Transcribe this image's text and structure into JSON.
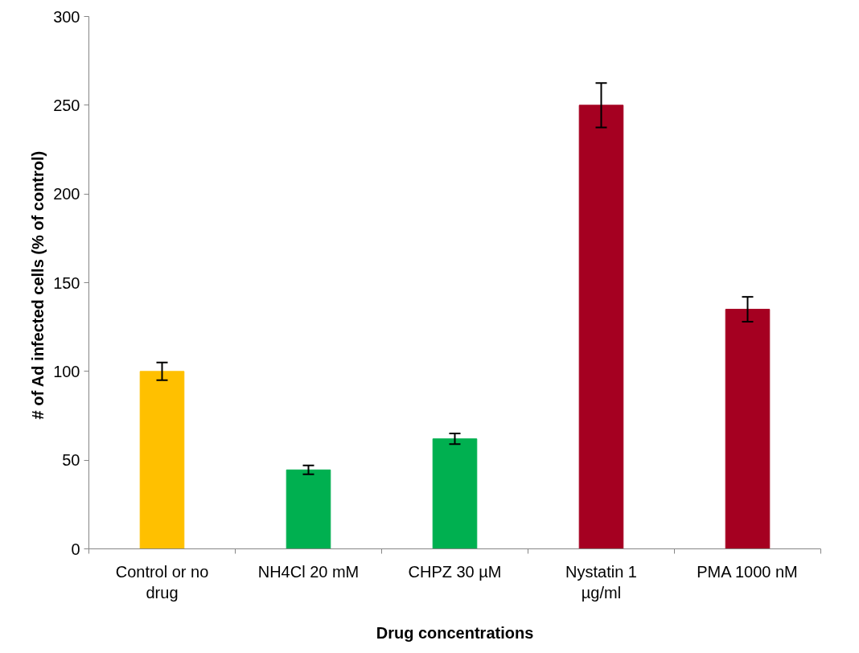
{
  "chart_data": {
    "type": "bar",
    "xlabel": "Drug concentrations",
    "ylabel": "# of Ad infected cells  (% of control)",
    "categories": [
      "Control or no drug",
      "NH4Cl 20 mM",
      "CHPZ 30 µM",
      "Nystatin 1 µg/ml",
      "PMA 1000 nM"
    ],
    "values": [
      100,
      44.5,
      62,
      250,
      135
    ],
    "colors": [
      "#ffc000",
      "#00b050",
      "#00b050",
      "#a50021",
      "#a50021"
    ],
    "errors": [
      5,
      2.5,
      3,
      12.5,
      7
    ],
    "ylim": [
      0,
      300
    ],
    "yticks": [
      0,
      50,
      100,
      150,
      200,
      250,
      300
    ],
    "grid": false
  }
}
